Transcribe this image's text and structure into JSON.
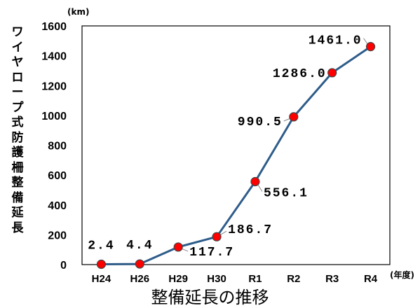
{
  "chart_data": {
    "type": "line",
    "categories": [
      "H24",
      "H26",
      "H29",
      "H30",
      "R1",
      "R2",
      "R3",
      "R4"
    ],
    "series": [
      {
        "values": [
          2.4,
          4.4,
          117.7,
          186.7,
          556.1,
          990.5,
          1286.0,
          1461.0
        ]
      }
    ],
    "data_labels": [
      "2.4",
      "4.4",
      "117.7",
      "186.7",
      "556.1",
      "990.5",
      "1286.0",
      "1461.0"
    ],
    "ylabel": "ワイヤロープ式防護柵整備延長",
    "y_unit": "(km)",
    "xlabel": "整備延長の推移",
    "x_unit": "(年度)",
    "ylim": [
      0,
      1600
    ],
    "yticks": [
      0,
      200,
      400,
      600,
      800,
      1000,
      1200,
      1400,
      1600
    ],
    "grid": false,
    "line_color": "#2e5c8a",
    "marker_color": "#ff0000"
  }
}
